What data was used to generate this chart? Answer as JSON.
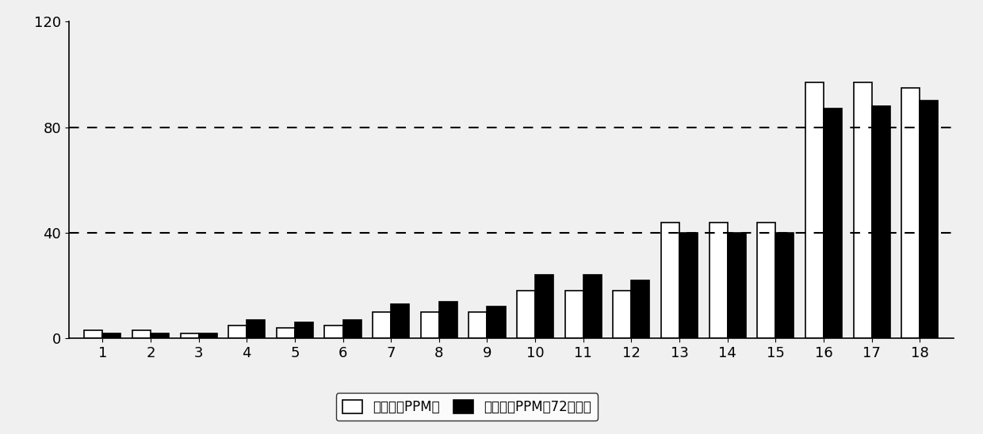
{
  "categories": [
    1,
    2,
    3,
    4,
    5,
    6,
    7,
    8,
    9,
    10,
    11,
    12,
    13,
    14,
    15,
    16,
    17,
    18
  ],
  "series1": [
    3,
    3,
    2,
    5,
    4,
    5,
    10,
    10,
    10,
    18,
    18,
    18,
    44,
    44,
    44,
    97,
    97,
    95
  ],
  "series2": [
    2,
    2,
    2,
    7,
    6,
    7,
    13,
    14,
    12,
    24,
    24,
    22,
    40,
    40,
    40,
    87,
    88,
    90
  ],
  "series1_color": "#ffffff",
  "series1_edgecolor": "#000000",
  "series2_color": "#000000",
  "series2_edgecolor": "#000000",
  "ylim": [
    0,
    120
  ],
  "yticks": [
    0,
    40,
    80,
    120
  ],
  "hlines": [
    40,
    80
  ],
  "hline_color": "#000000",
  "legend_label1": "數據一（PPM）",
  "legend_label2": "數據二（PPM後72小時）",
  "background_color": "#f0f0f0",
  "plot_bg_color": "#f0f0f0",
  "bar_width": 0.38,
  "figsize": [
    12.4,
    5.48
  ],
  "dpi": 100
}
